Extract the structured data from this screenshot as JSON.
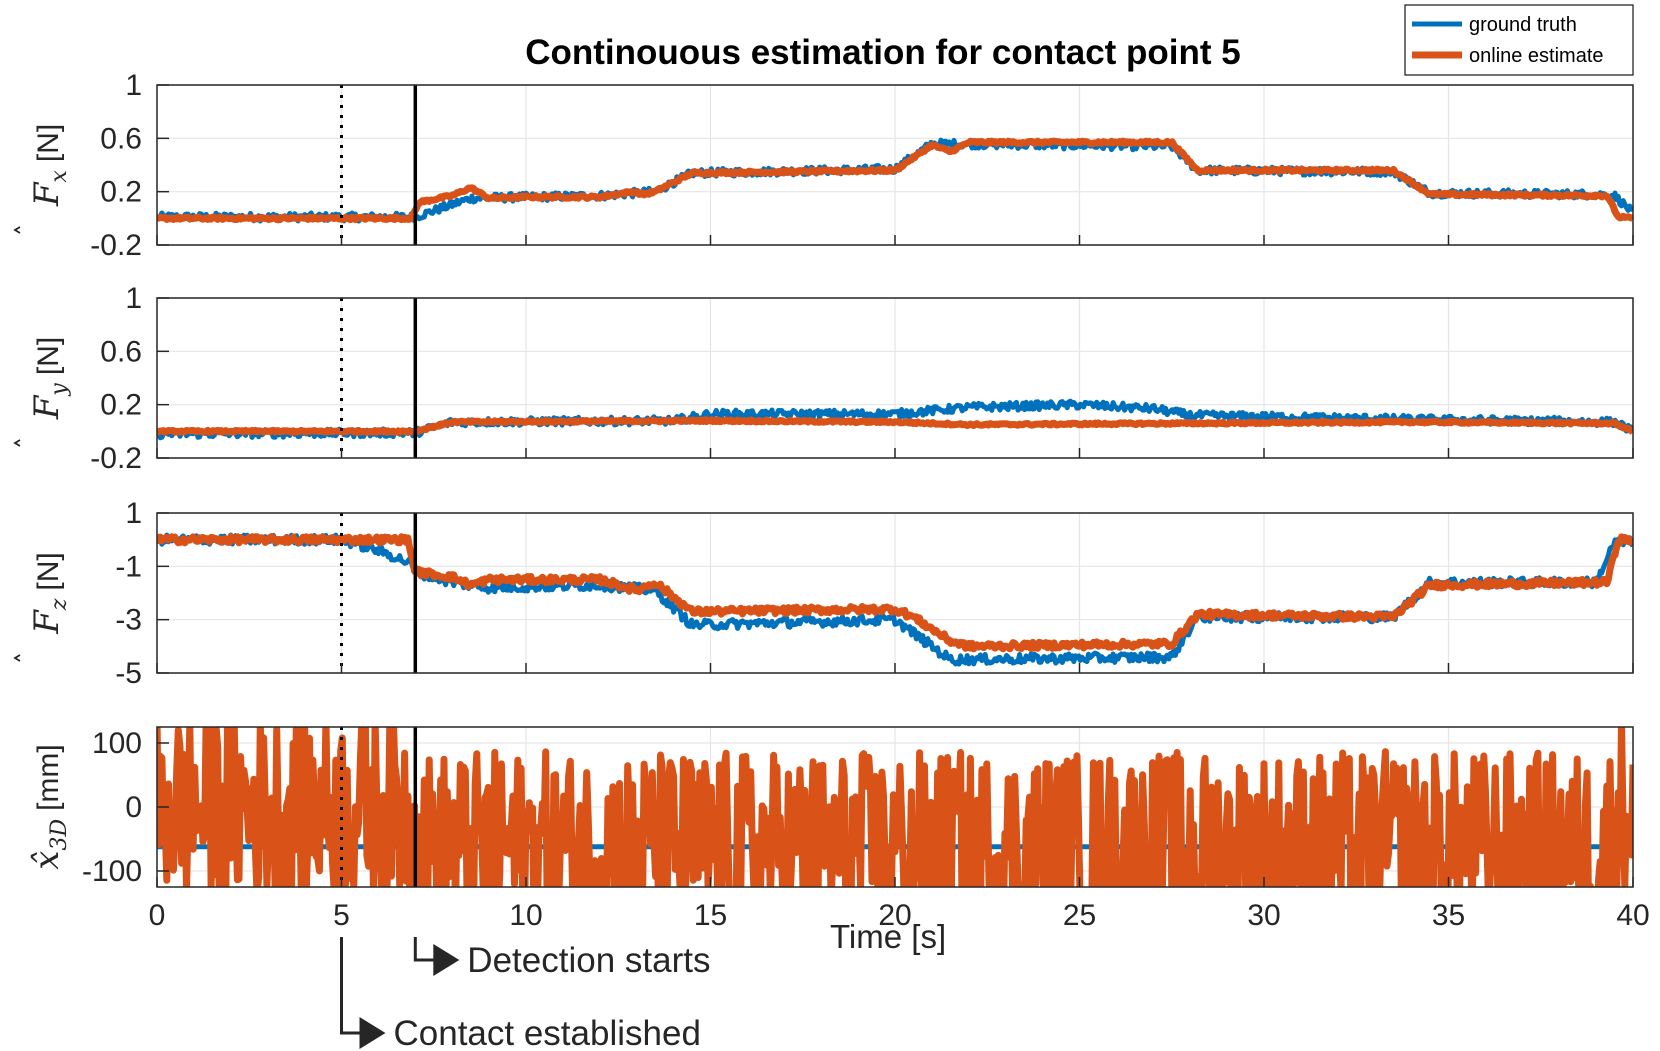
{
  "chart_data": {
    "type": "line",
    "title": "Continouous estimation for contact point 5",
    "xlabel": "Time [s]",
    "xlim": [
      0,
      40
    ],
    "xticks": [
      "0",
      "5",
      "10",
      "15",
      "20",
      "25",
      "30",
      "35",
      "40"
    ],
    "grid": true,
    "legend": {
      "placement": "top-right",
      "entries": [
        {
          "name": "ground truth",
          "color": "#0072BD"
        },
        {
          "name": "online estimate",
          "color": "#D95319"
        }
      ]
    },
    "annotations": {
      "contact": {
        "x": 5,
        "label": "Contact established",
        "style": "dotted"
      },
      "detection": {
        "x": 7,
        "label": "Detection starts",
        "style": "solid"
      }
    },
    "subplots": [
      {
        "ylabel_symbol": "F",
        "ylabel_sub": "x",
        "ylabel_unit": "[N]",
        "ylim": [
          -0.2,
          1.0
        ],
        "yticks": [
          -0.2,
          0.2,
          0.6,
          1.0
        ],
        "ytick_labels": [
          "-0.2",
          "0.2",
          "0.6",
          "1"
        ],
        "series": [
          {
            "name": "ground truth",
            "noise": 0.025,
            "x": [
              0,
              7,
              8.5,
              10,
              12,
              13.5,
              14.5,
              20,
              21,
              27.5,
              28.2,
              33.5,
              34.5,
              39,
              39.5,
              40
            ],
            "y": [
              0.01,
              0.01,
              0.15,
              0.16,
              0.17,
              0.2,
              0.34,
              0.37,
              0.56,
              0.54,
              0.36,
              0.35,
              0.19,
              0.18,
              0.17,
              0.04
            ]
          },
          {
            "name": "online estimate",
            "noise": 0.008,
            "x": [
              0,
              6.9,
              7.1,
              8,
              8.5,
              9,
              10,
              12,
              12.9,
              13.2,
              13.5,
              14.5,
              20,
              21,
              21.5,
              22,
              27.5,
              28.2,
              33.5,
              34.5,
              39.3,
              39.6,
              40
            ],
            "y": [
              0.0,
              0.0,
              0.12,
              0.17,
              0.23,
              0.15,
              0.16,
              0.16,
              0.2,
              0.18,
              0.2,
              0.34,
              0.36,
              0.55,
              0.5,
              0.57,
              0.57,
              0.36,
              0.36,
              0.18,
              0.17,
              0.01,
              0.0
            ]
          }
        ]
      },
      {
        "ylabel_symbol": "F",
        "ylabel_sub": "y",
        "ylabel_unit": "[N]",
        "ylim": [
          -0.2,
          1.0
        ],
        "yticks": [
          -0.2,
          0.2,
          0.6,
          1.0
        ],
        "ytick_labels": [
          "-0.2",
          "0.2",
          "0.6",
          "1"
        ],
        "series": [
          {
            "name": "ground truth",
            "noise": 0.025,
            "x": [
              0,
              7,
              8,
              14,
              15,
              20,
              22,
              25,
              27,
              28,
              34,
              39.5,
              40
            ],
            "y": [
              -0.02,
              -0.01,
              0.07,
              0.08,
              0.13,
              0.13,
              0.18,
              0.2,
              0.17,
              0.12,
              0.09,
              0.07,
              0.0
            ]
          },
          {
            "name": "online estimate",
            "noise": 0.006,
            "x": [
              0,
              7,
              8,
              15,
              20,
              22,
              28,
              34,
              39.5,
              40
            ],
            "y": [
              0.0,
              0.0,
              0.07,
              0.08,
              0.07,
              0.05,
              0.06,
              0.07,
              0.06,
              0.0
            ]
          }
        ]
      },
      {
        "ylabel_symbol": "F",
        "ylabel_sub": "z",
        "ylabel_unit": "[N]",
        "ylim": [
          -5,
          1
        ],
        "yticks": [
          -5,
          -3,
          -1,
          1
        ],
        "ytick_labels": [
          "-5",
          "-3",
          "-1",
          "1"
        ],
        "series": [
          {
            "name": "ground truth",
            "noise": 0.03,
            "x": [
              0,
              5,
              6,
              6.9,
              7,
              8,
              9,
              12,
              13.5,
              14.5,
              20,
              21,
              21.5,
              27.5,
              28.2,
              33.5,
              34.5,
              39,
              39.5,
              40
            ],
            "y": [
              0,
              0,
              -0.4,
              -0.9,
              -1.2,
              -1.6,
              -1.8,
              -1.7,
              -1.9,
              -3.2,
              -3.0,
              -4.0,
              -4.5,
              -4.4,
              -2.9,
              -2.9,
              -1.6,
              -1.6,
              -0.1,
              -0.1
            ]
          },
          {
            "name": "online estimate",
            "noise": 0.02,
            "x": [
              0,
              6.8,
              7,
              8,
              8.5,
              9,
              12,
              13,
              13.5,
              14.5,
              20,
              20.5,
              21.5,
              22,
              27.5,
              28.2,
              33.5,
              34.5,
              39.3,
              39.6,
              40
            ],
            "y": [
              0,
              0,
              -1.2,
              -1.4,
              -1.7,
              -1.5,
              -1.5,
              -1.9,
              -1.6,
              -2.7,
              -2.6,
              -2.9,
              -3.8,
              -4.0,
              -3.9,
              -2.8,
              -2.9,
              -1.7,
              -1.6,
              0,
              0
            ]
          }
        ]
      },
      {
        "ylabel_symbol": "x̂",
        "ylabel_sub": "3D",
        "ylabel_unit": "[mm]",
        "ylim": [
          -125,
          125
        ],
        "yticks": [
          -100,
          0,
          100
        ],
        "ytick_labels": [
          "-100",
          "0",
          "100"
        ],
        "series": [
          {
            "name": "ground truth",
            "noise": 0,
            "x": [
              0,
              7.1
            ],
            "y": [
              -62,
              -62
            ]
          },
          {
            "name": "online estimate",
            "noise": 0.6,
            "x": [
              0,
              6.8,
              7.1,
              39.3,
              39.6,
              40
            ],
            "y": [
              0,
              0,
              -62,
              -62,
              0,
              0
            ]
          }
        ]
      }
    ]
  }
}
